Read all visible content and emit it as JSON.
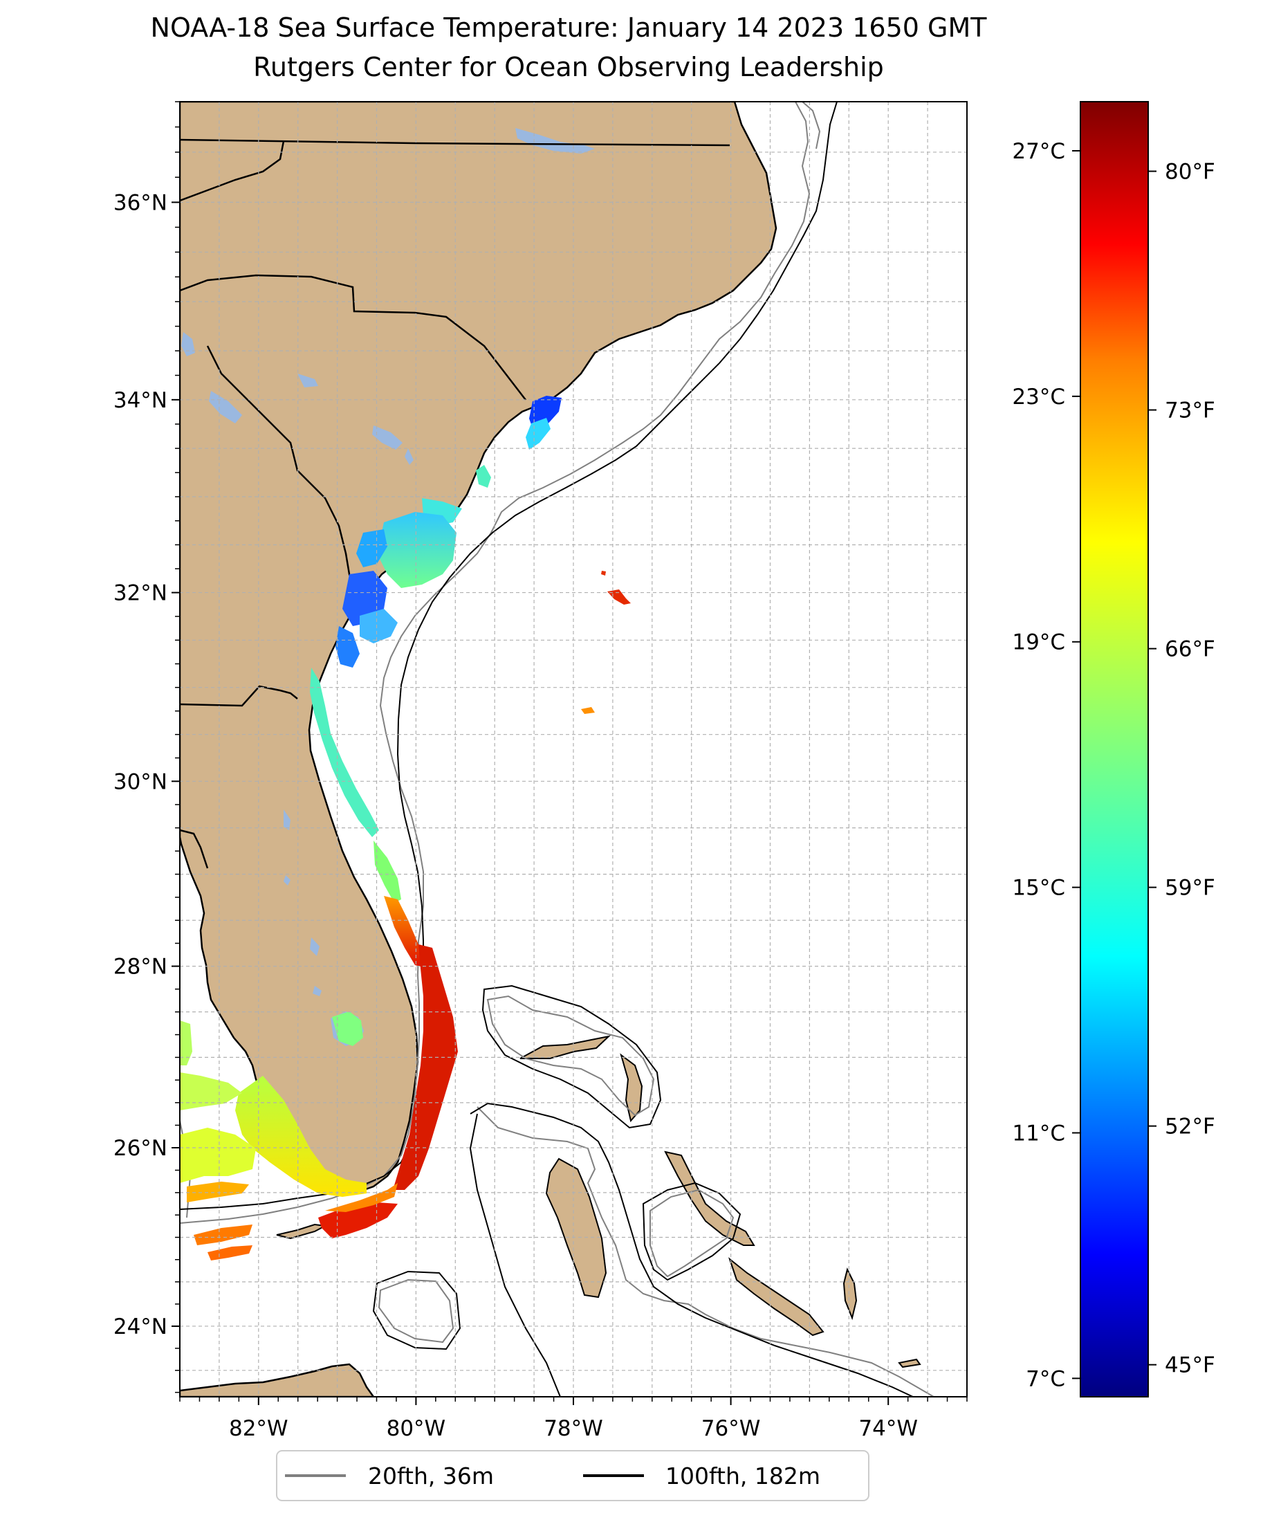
{
  "title_line1": "NOAA-18 Sea Surface Temperature: January 14 2023 1650 GMT",
  "title_line2": "Rutgers Center for Ocean Observing Leadership",
  "colors": {
    "land": "#d2b48c",
    "lake": "#9ab8e0",
    "ocean": "#ffffff",
    "grid": "#b0b0b0",
    "contour_20fth": "#808080",
    "contour_100fth": "#000000",
    "colormap": [
      "#00007f",
      "#0000ff",
      "#007fff",
      "#00ffff",
      "#7fff7f",
      "#ffff00",
      "#ff7f00",
      "#ff0000",
      "#7f0000"
    ]
  },
  "map": {
    "projection": "Mercator",
    "lon_range": [
      -83,
      -73
    ],
    "lat_range": [
      23.2,
      37.0
    ],
    "gridlines": "dashed",
    "lat_ticks": [
      {
        "value": 24,
        "label": "24°N"
      },
      {
        "value": 26,
        "label": "26°N"
      },
      {
        "value": 28,
        "label": "28°N"
      },
      {
        "value": 30,
        "label": "30°N"
      },
      {
        "value": 32,
        "label": "32°N"
      },
      {
        "value": 34,
        "label": "34°N"
      },
      {
        "value": 36,
        "label": "36°N"
      }
    ],
    "lon_ticks": [
      {
        "value": -82,
        "label": "82°W"
      },
      {
        "value": -80,
        "label": "80°W"
      },
      {
        "value": -78,
        "label": "78°W"
      },
      {
        "value": -76,
        "label": "76°W"
      },
      {
        "value": -74,
        "label": "74°W"
      }
    ]
  },
  "colorbar": {
    "celsius_range": [
      6.7,
      27.8
    ],
    "celsius_ticks": [
      {
        "value": 7,
        "label": "7°C"
      },
      {
        "value": 11,
        "label": "11°C"
      },
      {
        "value": 15,
        "label": "15°C"
      },
      {
        "value": 19,
        "label": "19°C"
      },
      {
        "value": 23,
        "label": "23°C"
      },
      {
        "value": 27,
        "label": "27°C"
      }
    ],
    "fahrenheit_ticks": [
      {
        "value": 45,
        "label": "45°F"
      },
      {
        "value": 52,
        "label": "52°F"
      },
      {
        "value": 59,
        "label": "59°F"
      },
      {
        "value": 66,
        "label": "66°F"
      },
      {
        "value": 73,
        "label": "73°F"
      },
      {
        "value": 80,
        "label": "80°F"
      }
    ]
  },
  "legend": [
    {
      "label": "20fth, 36m",
      "color": "#808080"
    },
    {
      "label": "100fth, 182m",
      "color": "#000000"
    }
  ]
}
